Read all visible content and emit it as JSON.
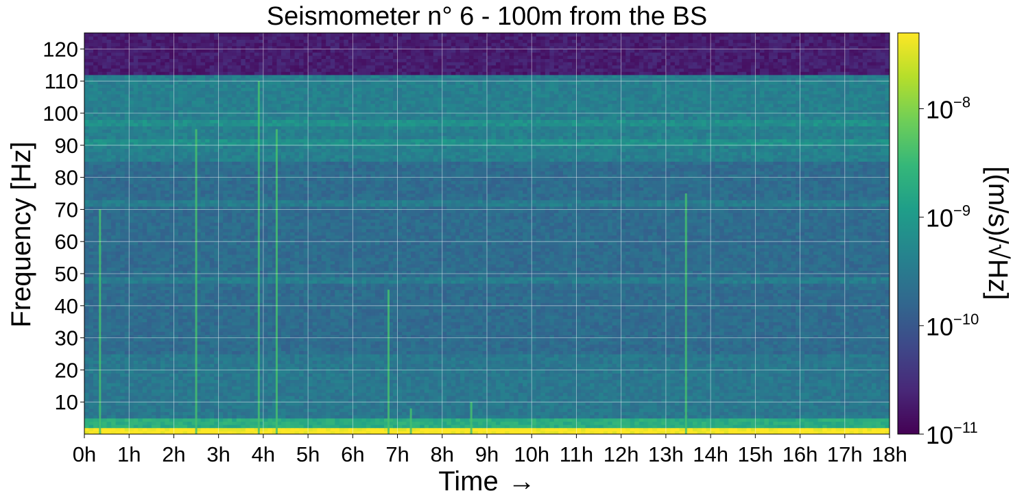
{
  "chart_data": {
    "type": "heatmap",
    "title": "Seismometer n° 6 - 100m from the BS",
    "xlabel": "Time",
    "xlabel_arrow": "→",
    "ylabel": "Frequency [Hz]",
    "x_ticks": [
      "0h",
      "1h",
      "2h",
      "3h",
      "4h",
      "5h",
      "6h",
      "7h",
      "8h",
      "9h",
      "10h",
      "11h",
      "12h",
      "13h",
      "14h",
      "15h",
      "16h",
      "17h",
      "18h"
    ],
    "xlim_hours": [
      0,
      18
    ],
    "y_ticks": [
      10,
      20,
      30,
      40,
      50,
      60,
      70,
      80,
      90,
      100,
      110,
      120
    ],
    "ylim_hz": [
      0,
      125
    ],
    "grid": true,
    "colormap": "viridis",
    "colorbar": {
      "label": "[(m/s)/√Hz]",
      "scale": "log",
      "range": [
        1e-11,
        5e-08
      ],
      "ticks": [
        {
          "value": 1e-11,
          "base": "10",
          "exp": "−11"
        },
        {
          "value": 1e-10,
          "base": "10",
          "exp": "−10"
        },
        {
          "value": 1e-09,
          "base": "10",
          "exp": "−9"
        },
        {
          "value": 1e-08,
          "base": "10",
          "exp": "−8"
        }
      ]
    },
    "features": {
      "background_levels": [
        {
          "freq_range_hz": [
            0,
            2
          ],
          "level": 5e-08
        },
        {
          "freq_range_hz": [
            2,
            5
          ],
          "level": 2e-09
        },
        {
          "freq_range_hz": [
            5,
            25
          ],
          "level": 3e-10
        },
        {
          "freq_range_hz": [
            25,
            85
          ],
          "level": 2e-10
        },
        {
          "freq_range_hz": [
            85,
            112
          ],
          "level": 4e-10
        },
        {
          "freq_range_hz": [
            112,
            125
          ],
          "level": 2e-11
        }
      ],
      "horizontal_lines_hz": [
        48,
        72,
        91,
        97
      ],
      "transient_events": [
        {
          "time_h": 0.35,
          "max_freq_hz": 70
        },
        {
          "time_h": 2.5,
          "max_freq_hz": 95
        },
        {
          "time_h": 3.9,
          "max_freq_hz": 110
        },
        {
          "time_h": 4.3,
          "max_freq_hz": 95
        },
        {
          "time_h": 6.8,
          "max_freq_hz": 45
        },
        {
          "time_h": 7.3,
          "max_freq_hz": 8
        },
        {
          "time_h": 8.65,
          "max_freq_hz": 10
        },
        {
          "time_h": 13.45,
          "max_freq_hz": 75
        }
      ]
    }
  },
  "colors": {
    "viridis": [
      "#440154",
      "#482878",
      "#3e4989",
      "#31688e",
      "#26828e",
      "#1f9e89",
      "#35b779",
      "#6ece58",
      "#b5de2b",
      "#fde725"
    ],
    "grid": "#ffffff",
    "text": "#000000"
  }
}
